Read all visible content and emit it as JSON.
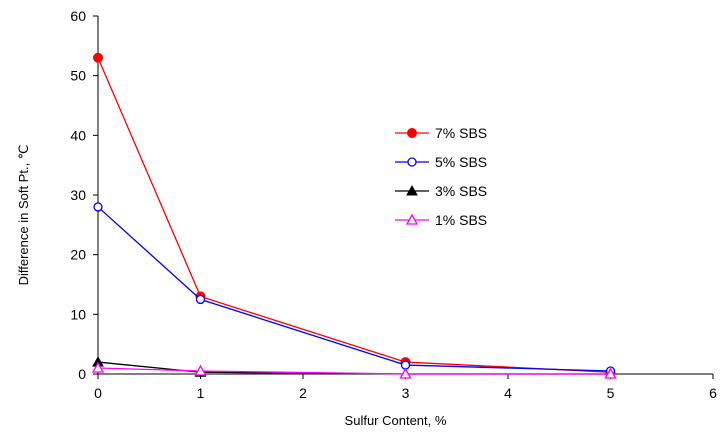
{
  "chart_data": {
    "type": "line",
    "title": "",
    "xlabel": "Sulfur Content, %",
    "ylabel": "Difference in Soft Pt., ℃",
    "xlim": [
      0,
      6
    ],
    "ylim": [
      0,
      60
    ],
    "xticks": [
      0,
      1,
      2,
      3,
      4,
      5,
      6
    ],
    "yticks": [
      0,
      10,
      20,
      30,
      40,
      50,
      60
    ],
    "grid": false,
    "legend_position": "center-right",
    "series": [
      {
        "name": "7% SBS",
        "color": "#ff0000",
        "marker": "circle-filled",
        "x": [
          0,
          1,
          3,
          5
        ],
        "y": [
          53,
          13,
          2,
          0.3
        ]
      },
      {
        "name": "5% SBS",
        "color": "#0000ff",
        "marker": "circle-open",
        "x": [
          0,
          1,
          3,
          5
        ],
        "y": [
          28,
          12.5,
          1.5,
          0.5
        ]
      },
      {
        "name": "3% SBS",
        "color": "#000000",
        "marker": "triangle-filled",
        "x": [
          0,
          1,
          3,
          5
        ],
        "y": [
          2,
          0.3,
          0,
          0
        ]
      },
      {
        "name": "1% SBS",
        "color": "#ff00ff",
        "marker": "triangle-open",
        "x": [
          0,
          1,
          3,
          5
        ],
        "y": [
          1,
          0.5,
          0,
          0
        ]
      }
    ]
  }
}
